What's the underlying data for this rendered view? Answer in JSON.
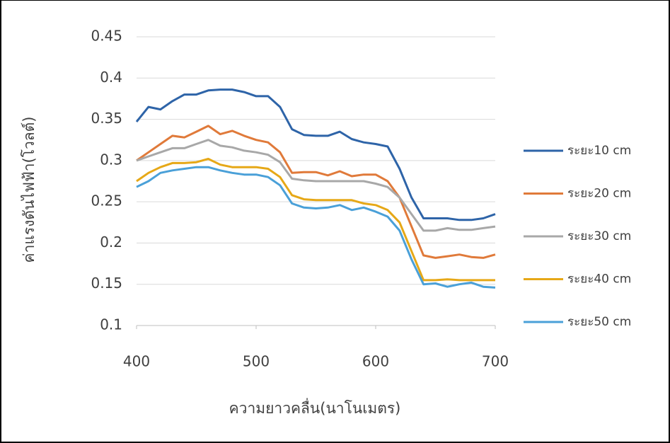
{
  "chart_data": {
    "type": "line",
    "x_label": "ความยาวคลื่น(นาโนเมตร)",
    "y_label": "ค่าแรงดันไฟฟ้า(โวลต์)",
    "x": [
      400,
      410,
      420,
      430,
      440,
      450,
      460,
      470,
      480,
      490,
      500,
      510,
      520,
      530,
      540,
      550,
      560,
      570,
      580,
      590,
      600,
      610,
      620,
      630,
      640,
      650,
      660,
      670,
      680,
      690,
      700
    ],
    "series": [
      {
        "name": "ระยะ10 cm",
        "color": "#2e64a8",
        "values": [
          0.347,
          0.365,
          0.362,
          0.372,
          0.38,
          0.38,
          0.385,
          0.386,
          0.386,
          0.383,
          0.378,
          0.378,
          0.365,
          0.338,
          0.331,
          0.33,
          0.33,
          0.335,
          0.326,
          0.322,
          0.32,
          0.317,
          0.29,
          0.255,
          0.23,
          0.23,
          0.23,
          0.228,
          0.228,
          0.23,
          0.235
        ]
      },
      {
        "name": "ระยะ20 cm",
        "color": "#e07a3a",
        "values": [
          0.3,
          0.31,
          0.32,
          0.33,
          0.328,
          0.335,
          0.342,
          0.332,
          0.336,
          0.33,
          0.325,
          0.322,
          0.31,
          0.285,
          0.286,
          0.286,
          0.282,
          0.287,
          0.281,
          0.283,
          0.283,
          0.275,
          0.255,
          0.22,
          0.185,
          0.182,
          0.184,
          0.186,
          0.183,
          0.182,
          0.186
        ]
      },
      {
        "name": "ระยะ30 cm",
        "color": "#a8a8a8",
        "values": [
          0.3,
          0.305,
          0.31,
          0.315,
          0.315,
          0.32,
          0.325,
          0.318,
          0.316,
          0.312,
          0.31,
          0.307,
          0.298,
          0.278,
          0.276,
          0.275,
          0.275,
          0.275,
          0.275,
          0.275,
          0.272,
          0.268,
          0.255,
          0.235,
          0.215,
          0.215,
          0.218,
          0.216,
          0.216,
          0.218,
          0.22
        ]
      },
      {
        "name": "ระยะ40 cm",
        "color": "#e6a817",
        "values": [
          0.275,
          0.285,
          0.292,
          0.297,
          0.297,
          0.298,
          0.302,
          0.295,
          0.292,
          0.292,
          0.292,
          0.29,
          0.28,
          0.258,
          0.253,
          0.252,
          0.252,
          0.252,
          0.252,
          0.248,
          0.246,
          0.24,
          0.225,
          0.19,
          0.155,
          0.155,
          0.156,
          0.155,
          0.155,
          0.155,
          0.155
        ]
      },
      {
        "name": "ระยะ50 cm",
        "color": "#4aa0d8",
        "values": [
          0.268,
          0.275,
          0.285,
          0.288,
          0.29,
          0.292,
          0.292,
          0.288,
          0.285,
          0.283,
          0.283,
          0.28,
          0.27,
          0.248,
          0.243,
          0.242,
          0.243,
          0.246,
          0.24,
          0.243,
          0.238,
          0.232,
          0.215,
          0.18,
          0.15,
          0.151,
          0.147,
          0.15,
          0.152,
          0.147,
          0.146
        ]
      }
    ],
    "xlim": [
      400,
      700
    ],
    "xticks": [
      400,
      500,
      600,
      700
    ],
    "ylim": [
      0.1,
      0.45
    ],
    "yticks": [
      0.1,
      0.15,
      0.2,
      0.25,
      0.3,
      0.35,
      0.4,
      0.45
    ],
    "grid": true,
    "legend": "right"
  }
}
